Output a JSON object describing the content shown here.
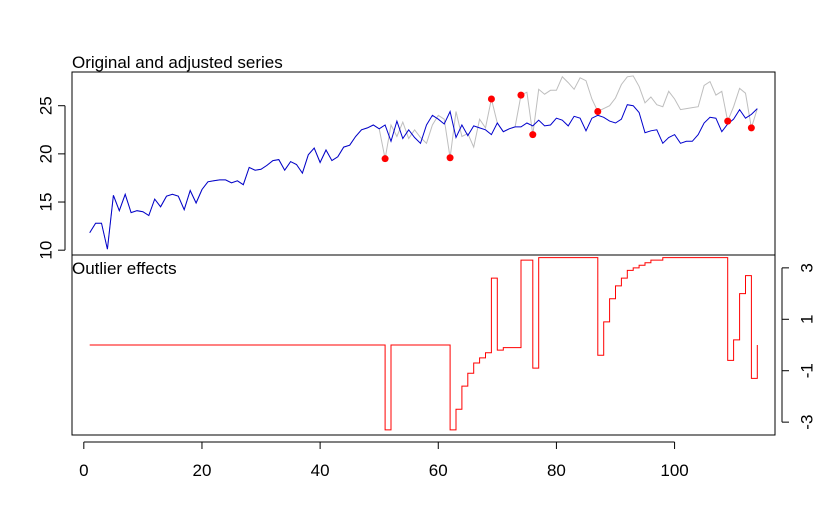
{
  "chart_data": [
    {
      "type": "line",
      "title": "Original and adjusted series",
      "xlabel": "",
      "ylabel": "",
      "xlim": [
        -2,
        117
      ],
      "ylim": [
        9.5,
        28.5
      ],
      "yticks": [
        10,
        15,
        20,
        25
      ],
      "grid": false,
      "colors": {
        "original": "#bebebe",
        "adjusted": "#0000cd",
        "outlier_point": "#ff0000"
      },
      "original": [
        [
          1,
          11.8
        ],
        [
          2,
          12.8
        ],
        [
          3,
          12.8
        ],
        [
          4,
          10.1
        ],
        [
          5,
          15.7
        ],
        [
          6,
          14.1
        ],
        [
          7,
          15.8
        ],
        [
          8,
          13.9
        ],
        [
          9,
          14.1
        ],
        [
          10,
          14.0
        ],
        [
          11,
          13.6
        ],
        [
          12,
          15.3
        ],
        [
          13,
          14.5
        ],
        [
          14,
          15.6
        ],
        [
          15,
          15.8
        ],
        [
          16,
          15.6
        ],
        [
          17,
          14.2
        ],
        [
          18,
          16.2
        ],
        [
          19,
          14.9
        ],
        [
          20,
          16.3
        ],
        [
          21,
          17.1
        ],
        [
          22,
          17.2
        ],
        [
          23,
          17.3
        ],
        [
          24,
          17.3
        ],
        [
          25,
          17.0
        ],
        [
          26,
          17.2
        ],
        [
          27,
          16.8
        ],
        [
          28,
          18.6
        ],
        [
          29,
          18.3
        ],
        [
          30,
          18.4
        ],
        [
          31,
          18.8
        ],
        [
          32,
          19.3
        ],
        [
          33,
          19.4
        ],
        [
          34,
          18.3
        ],
        [
          35,
          19.2
        ],
        [
          36,
          18.9
        ],
        [
          37,
          18.0
        ],
        [
          38,
          19.9
        ],
        [
          39,
          20.6
        ],
        [
          40,
          19.1
        ],
        [
          41,
          20.4
        ],
        [
          42,
          19.3
        ],
        [
          43,
          19.7
        ],
        [
          44,
          20.7
        ],
        [
          45,
          20.9
        ],
        [
          46,
          21.8
        ],
        [
          47,
          22.5
        ],
        [
          48,
          22.7
        ],
        [
          49,
          23.0
        ],
        [
          50,
          22.6
        ],
        [
          51,
          19.5
        ],
        [
          52,
          23.0
        ],
        [
          53,
          21.8
        ],
        [
          54,
          23.3
        ],
        [
          55,
          21.6
        ],
        [
          56,
          22.5
        ],
        [
          57,
          21.7
        ],
        [
          58,
          21.1
        ],
        [
          59,
          23.0
        ],
        [
          60,
          24.0
        ],
        [
          61,
          23.6
        ],
        [
          62,
          19.6
        ],
        [
          63,
          24.4
        ],
        [
          64,
          21.8
        ],
        [
          65,
          22.1
        ],
        [
          66,
          20.7
        ],
        [
          67,
          23.6
        ],
        [
          68,
          22.7
        ],
        [
          69,
          25.7
        ],
        [
          70,
          23.2
        ],
        [
          71,
          22.3
        ],
        [
          72,
          22.6
        ],
        [
          73,
          22.8
        ],
        [
          74,
          26.1
        ],
        [
          75,
          26.4
        ],
        [
          76,
          22.0
        ],
        [
          77,
          26.7
        ],
        [
          78,
          26.2
        ],
        [
          79,
          26.6
        ],
        [
          80,
          26.6
        ],
        [
          81,
          28.0
        ],
        [
          82,
          27.4
        ],
        [
          83,
          26.7
        ],
        [
          84,
          27.9
        ],
        [
          85,
          27.6
        ],
        [
          86,
          25.7
        ],
        [
          87,
          24.4
        ],
        [
          88,
          24.7
        ],
        [
          89,
          25.0
        ],
        [
          90,
          25.8
        ],
        [
          91,
          27.2
        ],
        [
          92,
          28.0
        ],
        [
          93,
          28.1
        ],
        [
          94,
          27.0
        ],
        [
          95,
          25.3
        ],
        [
          96,
          25.9
        ],
        [
          97,
          25.1
        ],
        [
          98,
          24.9
        ],
        [
          99,
          26.5
        ],
        [
          100,
          25.7
        ],
        [
          101,
          24.6
        ],
        [
          102,
          24.7
        ],
        [
          103,
          24.8
        ],
        [
          104,
          24.9
        ],
        [
          105,
          27.1
        ],
        [
          106,
          27.5
        ],
        [
          107,
          26.1
        ],
        [
          108,
          26.5
        ],
        [
          109,
          23.4
        ],
        [
          110,
          24.9
        ],
        [
          111,
          26.8
        ],
        [
          112,
          26.3
        ],
        [
          113,
          22.7
        ],
        [
          114,
          24.7
        ]
      ],
      "adjusted": [
        [
          1,
          11.8
        ],
        [
          2,
          12.8
        ],
        [
          3,
          12.8
        ],
        [
          4,
          10.1
        ],
        [
          5,
          15.7
        ],
        [
          6,
          14.1
        ],
        [
          7,
          15.8
        ],
        [
          8,
          13.9
        ],
        [
          9,
          14.1
        ],
        [
          10,
          14.0
        ],
        [
          11,
          13.6
        ],
        [
          12,
          15.3
        ],
        [
          13,
          14.5
        ],
        [
          14,
          15.6
        ],
        [
          15,
          15.8
        ],
        [
          16,
          15.6
        ],
        [
          17,
          14.2
        ],
        [
          18,
          16.2
        ],
        [
          19,
          14.9
        ],
        [
          20,
          16.3
        ],
        [
          21,
          17.1
        ],
        [
          22,
          17.2
        ],
        [
          23,
          17.3
        ],
        [
          24,
          17.3
        ],
        [
          25,
          17.0
        ],
        [
          26,
          17.2
        ],
        [
          27,
          16.8
        ],
        [
          28,
          18.6
        ],
        [
          29,
          18.3
        ],
        [
          30,
          18.4
        ],
        [
          31,
          18.8
        ],
        [
          32,
          19.3
        ],
        [
          33,
          19.4
        ],
        [
          34,
          18.3
        ],
        [
          35,
          19.2
        ],
        [
          36,
          18.9
        ],
        [
          37,
          18.0
        ],
        [
          38,
          19.9
        ],
        [
          39,
          20.6
        ],
        [
          40,
          19.1
        ],
        [
          41,
          20.4
        ],
        [
          42,
          19.3
        ],
        [
          43,
          19.7
        ],
        [
          44,
          20.7
        ],
        [
          45,
          20.9
        ],
        [
          46,
          21.8
        ],
        [
          47,
          22.5
        ],
        [
          48,
          22.7
        ],
        [
          49,
          23.0
        ],
        [
          50,
          22.6
        ],
        [
          51,
          23.0
        ],
        [
          52,
          21.3
        ],
        [
          53,
          23.4
        ],
        [
          54,
          21.6
        ],
        [
          55,
          22.5
        ],
        [
          56,
          21.7
        ],
        [
          57,
          21.1
        ],
        [
          58,
          23.0
        ],
        [
          59,
          24.0
        ],
        [
          60,
          23.6
        ],
        [
          61,
          23.1
        ],
        [
          62,
          24.4
        ],
        [
          63,
          21.7
        ],
        [
          64,
          23.0
        ],
        [
          65,
          21.9
        ],
        [
          66,
          22.9
        ],
        [
          67,
          22.7
        ],
        [
          68,
          22.5
        ],
        [
          69,
          22.0
        ],
        [
          70,
          23.2
        ],
        [
          71,
          22.3
        ],
        [
          72,
          22.6
        ],
        [
          73,
          22.8
        ],
        [
          74,
          22.8
        ],
        [
          75,
          23.2
        ],
        [
          76,
          22.9
        ],
        [
          77,
          23.5
        ],
        [
          78,
          22.9
        ],
        [
          79,
          23.0
        ],
        [
          80,
          23.7
        ],
        [
          81,
          23.5
        ],
        [
          82,
          22.9
        ],
        [
          83,
          23.9
        ],
        [
          84,
          23.7
        ],
        [
          85,
          22.4
        ],
        [
          86,
          23.7
        ],
        [
          87,
          24.0
        ],
        [
          88,
          23.8
        ],
        [
          89,
          23.4
        ],
        [
          90,
          23.2
        ],
        [
          91,
          23.6
        ],
        [
          92,
          25.1
        ],
        [
          93,
          25.0
        ],
        [
          94,
          24.3
        ],
        [
          95,
          22.2
        ],
        [
          96,
          22.4
        ],
        [
          97,
          22.5
        ],
        [
          98,
          21.1
        ],
        [
          99,
          21.7
        ],
        [
          100,
          22.0
        ],
        [
          101,
          21.1
        ],
        [
          102,
          21.3
        ],
        [
          103,
          21.3
        ],
        [
          104,
          22.0
        ],
        [
          105,
          23.2
        ],
        [
          106,
          23.8
        ],
        [
          107,
          23.7
        ],
        [
          108,
          22.3
        ],
        [
          109,
          23.1
        ],
        [
          110,
          23.6
        ],
        [
          111,
          24.6
        ],
        [
          112,
          23.7
        ],
        [
          113,
          24.1
        ],
        [
          114,
          24.7
        ]
      ],
      "outliers": [
        [
          51,
          19.5
        ],
        [
          62,
          19.6
        ],
        [
          69,
          25.7
        ],
        [
          74,
          26.1
        ],
        [
          76,
          22.0
        ],
        [
          87,
          24.4
        ],
        [
          109,
          23.4
        ],
        [
          113,
          22.7
        ]
      ]
    },
    {
      "type": "line",
      "title": "Outlier effects",
      "xlabel": "",
      "ylabel": "",
      "xlim": [
        -2,
        117
      ],
      "xticks": [
        0,
        20,
        40,
        60,
        80,
        100
      ],
      "ylim": [
        -3.5,
        3.5
      ],
      "yticks": [
        -3,
        -1,
        1,
        3
      ],
      "y_axis_side": "right",
      "grid": false,
      "colors": {
        "effects": "#ff0000"
      },
      "steps": [
        [
          1,
          0
        ],
        [
          51,
          -3.3
        ],
        [
          52,
          0
        ],
        [
          62,
          -3.3
        ],
        [
          63,
          -2.5
        ],
        [
          64,
          -1.6
        ],
        [
          65,
          -1.1
        ],
        [
          66,
          -0.7
        ],
        [
          67,
          -0.5
        ],
        [
          68,
          -0.3
        ],
        [
          69,
          2.6
        ],
        [
          70,
          -0.2
        ],
        [
          71,
          -0.1
        ],
        [
          72,
          -0.1
        ],
        [
          74,
          3.3
        ],
        [
          76,
          -0.9
        ],
        [
          77,
          3.4
        ],
        [
          87,
          -0.4
        ],
        [
          88,
          0.9
        ],
        [
          89,
          1.8
        ],
        [
          90,
          2.3
        ],
        [
          91,
          2.6
        ],
        [
          92,
          2.9
        ],
        [
          93,
          3.0
        ],
        [
          94,
          3.1
        ],
        [
          95,
          3.2
        ],
        [
          96,
          3.3
        ],
        [
          97,
          3.3
        ],
        [
          98,
          3.4
        ],
        [
          99,
          3.4
        ],
        [
          109,
          -0.6
        ],
        [
          110,
          0.2
        ],
        [
          111,
          2.0
        ],
        [
          112,
          2.7
        ],
        [
          113,
          -1.3
        ],
        [
          114,
          0
        ]
      ]
    }
  ]
}
